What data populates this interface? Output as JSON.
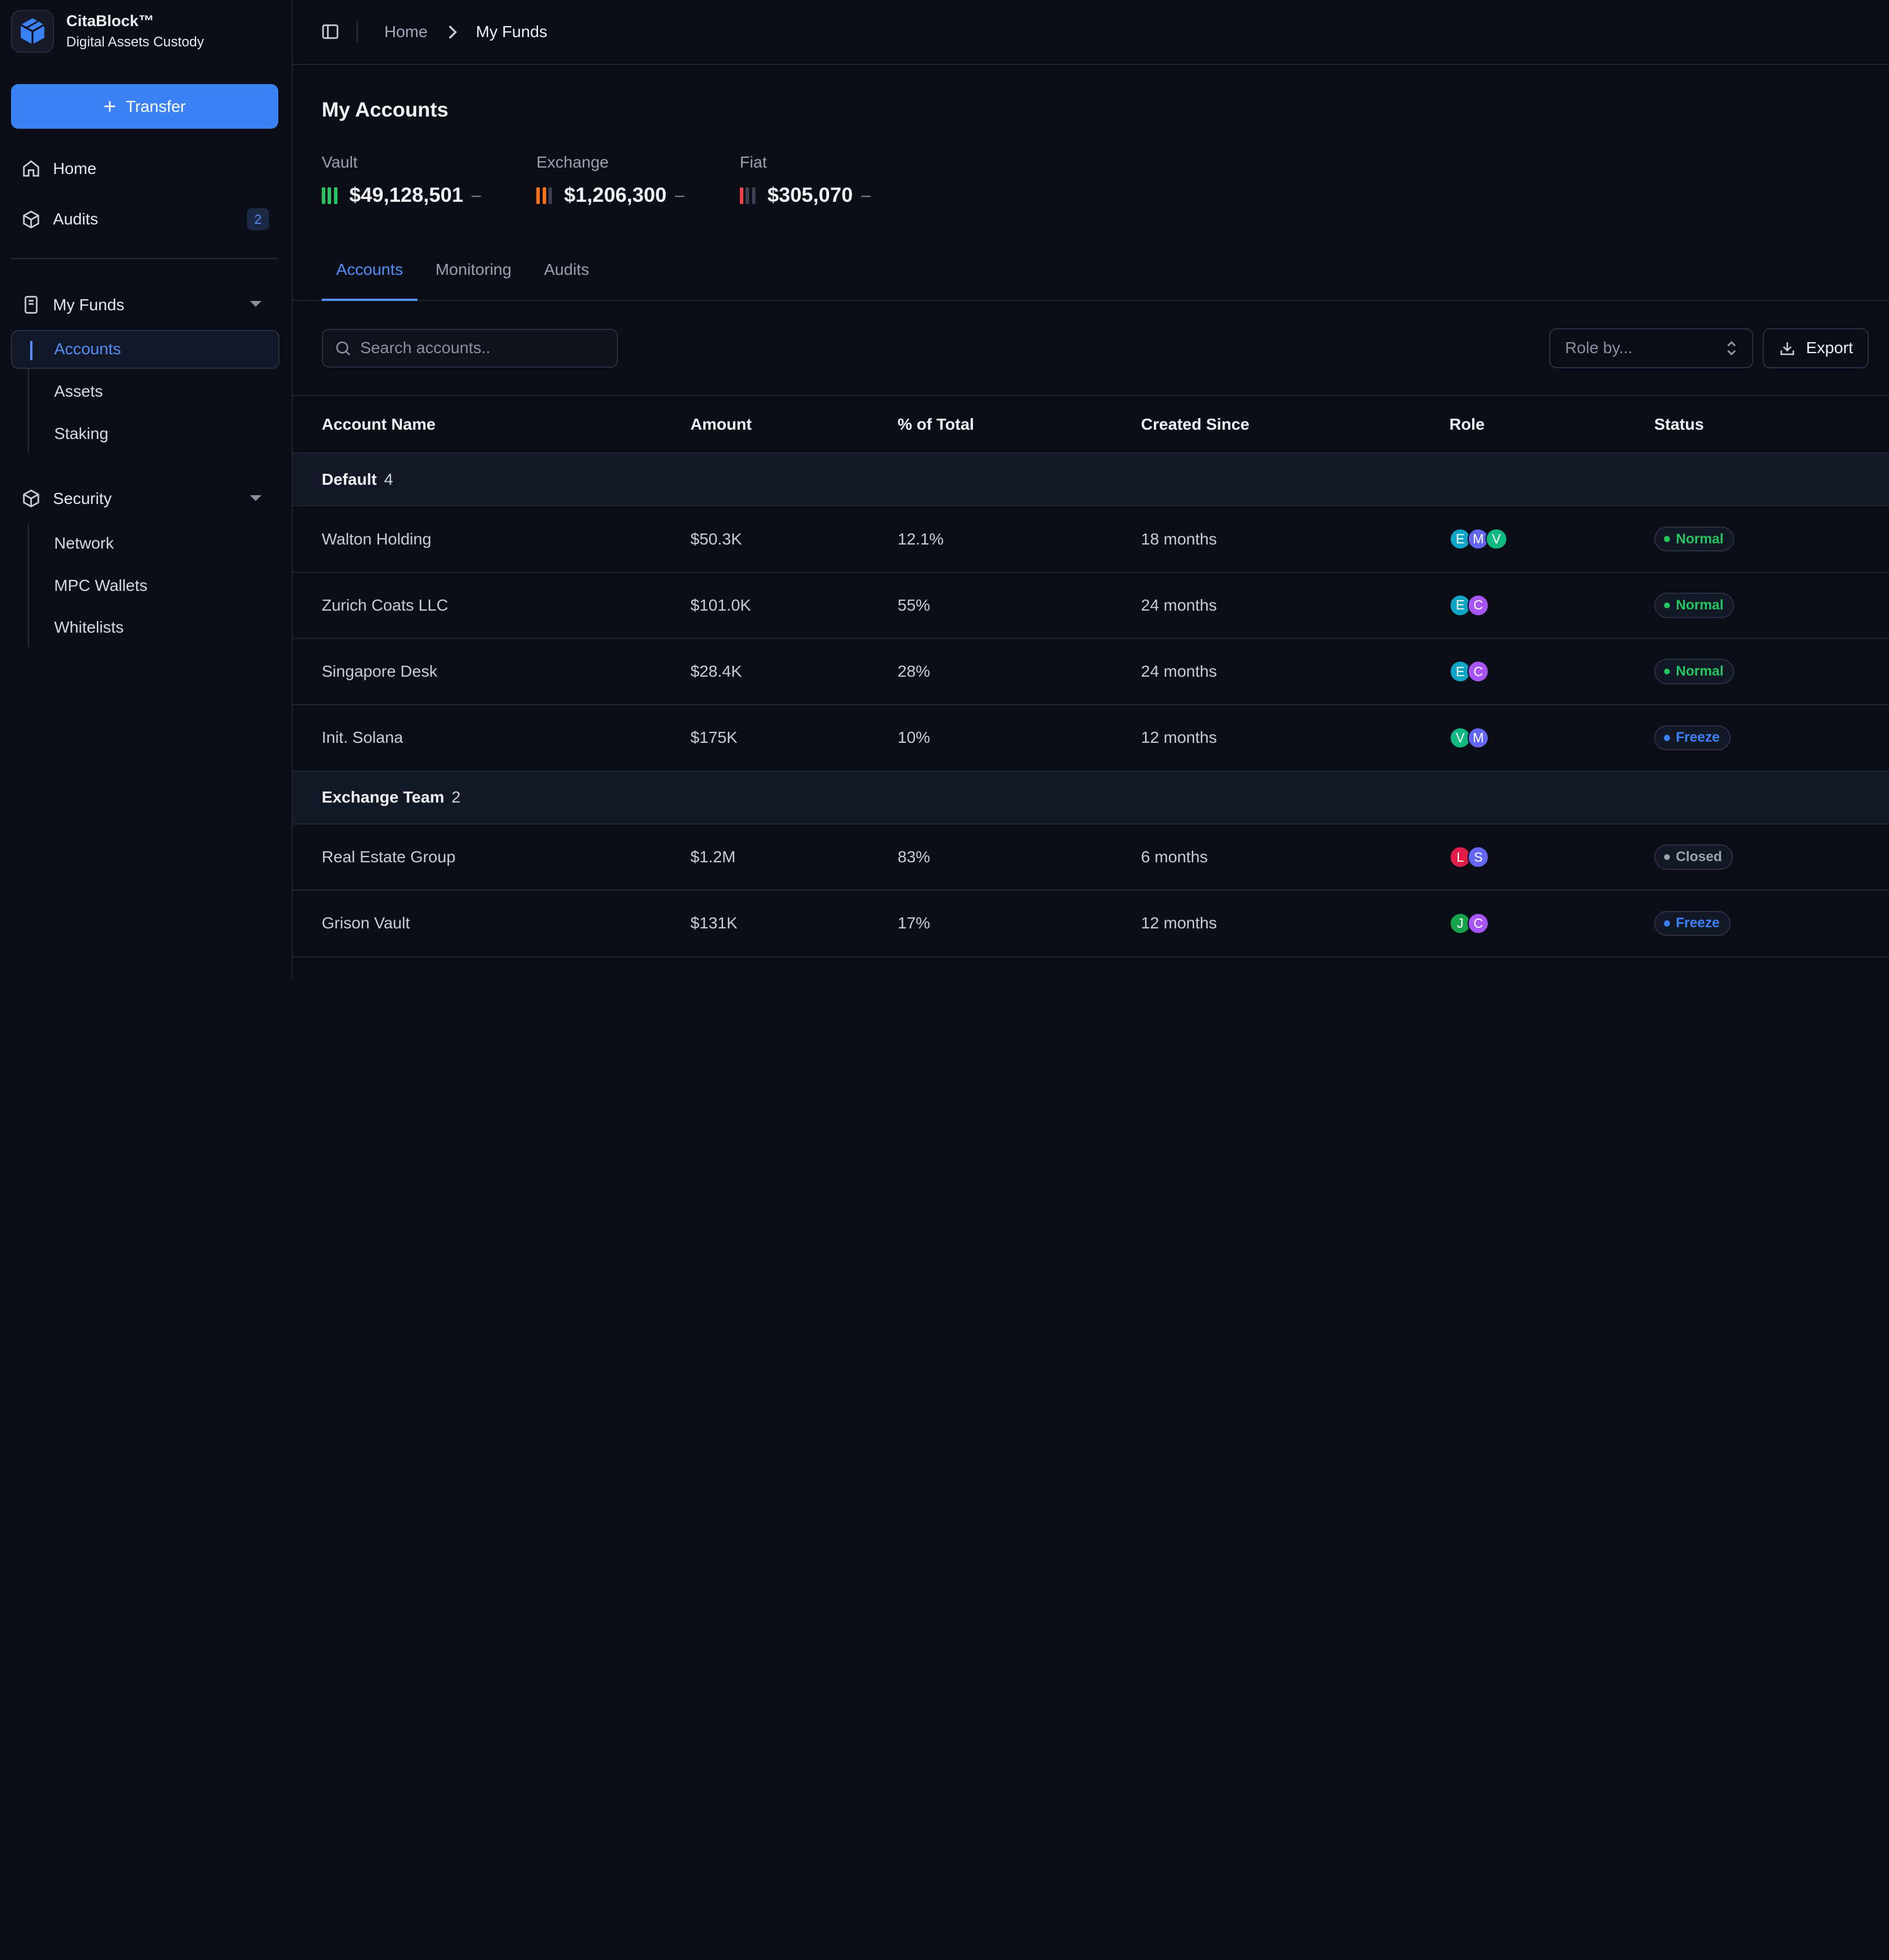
{
  "brand": {
    "name": "CitaBlock™",
    "subtitle": "Digital Assets Custody"
  },
  "transfer_label": "Transfer",
  "nav": {
    "home": "Home",
    "audits": "Audits",
    "audits_badge": "2",
    "funds": {
      "label": "My Funds",
      "items": [
        "Accounts",
        "Assets",
        "Staking"
      ]
    },
    "security": {
      "label": "Security",
      "items": [
        "Network",
        "MPC Wallets",
        "Whitelists"
      ]
    }
  },
  "breadcrumb": {
    "home": "Home",
    "current": "My Funds"
  },
  "page_title": "My Accounts",
  "stats": [
    {
      "label": "Vault",
      "value": "$49,128,501",
      "trend": "–",
      "color": "#22c55e",
      "filled": 3
    },
    {
      "label": "Exchange",
      "value": "$1,206,300",
      "trend": "–",
      "color": "#f97316",
      "filled": 2
    },
    {
      "label": "Fiat",
      "value": "$305,070",
      "trend": "–",
      "color": "#ef4444",
      "filled": 1
    }
  ],
  "tabs": [
    "Accounts",
    "Monitoring",
    "Audits"
  ],
  "search_placeholder": "Search accounts..",
  "role_placeholder": "Role by...",
  "export_label": "Export",
  "columns": [
    "Account Name",
    "Amount",
    "% of Total",
    "Created Since",
    "Role",
    "Status"
  ],
  "groups": [
    {
      "name": "Default",
      "count": "4",
      "rows": [
        {
          "name": "Walton Holding",
          "amount": "$50.3K",
          "pct": "12.1%",
          "since": "18 months",
          "roles": [
            "E",
            "M",
            "V"
          ],
          "status": "Normal"
        },
        {
          "name": "Zurich Coats LLC",
          "amount": "$101.0K",
          "pct": "55%",
          "since": "24 months",
          "roles": [
            "E",
            "C"
          ],
          "status": "Normal"
        },
        {
          "name": "Singapore Desk",
          "amount": "$28.4K",
          "pct": "28%",
          "since": "24 months",
          "roles": [
            "E",
            "C"
          ],
          "status": "Normal"
        },
        {
          "name": "Init. Solana",
          "amount": "$175K",
          "pct": "10%",
          "since": "12 months",
          "roles": [
            "V",
            "M"
          ],
          "status": "Freeze"
        }
      ]
    },
    {
      "name": "Exchange Team",
      "count": "2",
      "rows": [
        {
          "name": "Real Estate Group",
          "amount": "$1.2M",
          "pct": "83%",
          "since": "6 months",
          "roles": [
            "L",
            "S"
          ],
          "status": "Closed"
        },
        {
          "name": "Grison Vault",
          "amount": "$131K",
          "pct": "17%",
          "since": "12 months",
          "roles": [
            "J",
            "C"
          ],
          "status": "Freeze"
        }
      ]
    }
  ],
  "avatar_colors": {
    "E": "#0ea5c6",
    "M": "#6366f1",
    "V": "#10b981",
    "C": "#a855f7",
    "L": "#e11d48",
    "S": "#6366f1",
    "J": "#16a34a"
  },
  "status_colors": {
    "Normal": "#22c55e",
    "Freeze": "#3b82f6",
    "Closed": "#9ca3af"
  }
}
